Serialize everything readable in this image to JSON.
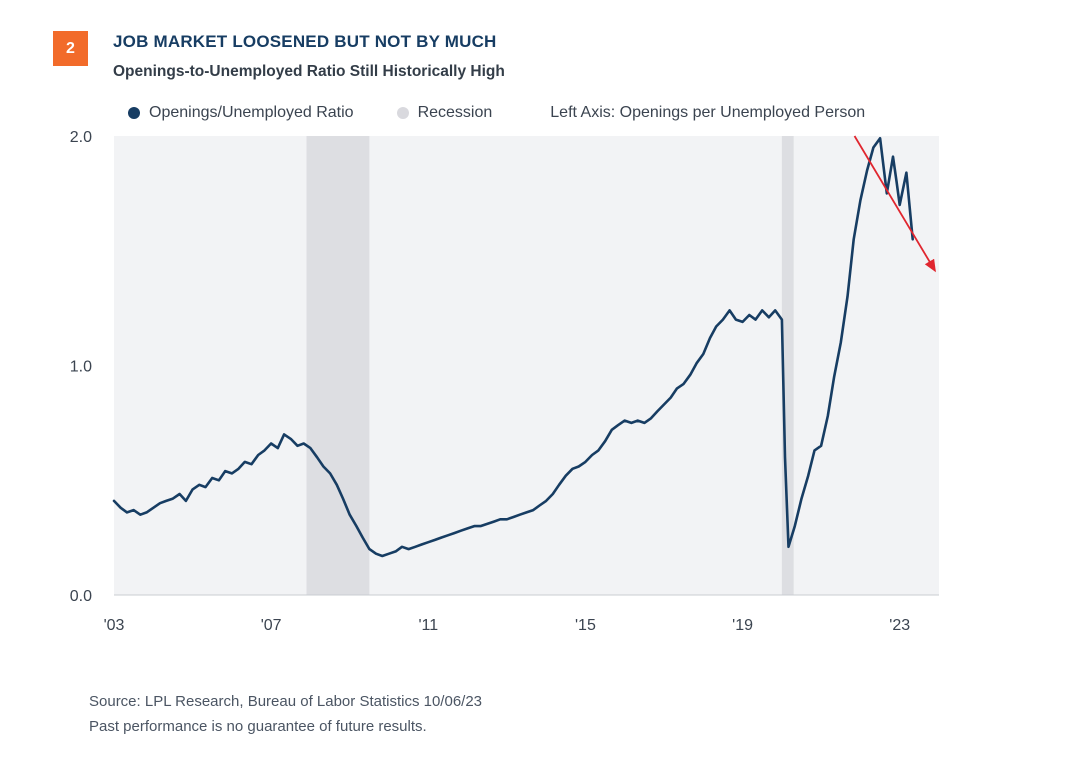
{
  "header": {
    "badge": "2",
    "title": "JOB MARKET LOOSENED BUT NOT BY MUCH",
    "subtitle": "Openings-to-Unemployed Ratio Still Historically High"
  },
  "legend": {
    "series_label": "Openings/Unemployed Ratio",
    "recession_label": "Recession",
    "axis_note": "Left Axis: Openings per Unemployed Person",
    "series_color": "#173d63",
    "recession_color": "#d9d9de"
  },
  "footer": {
    "source": "Source: LPL Research, Bureau of Labor Statistics  10/06/23",
    "disclaimer": "Past performance is no guarantee of future results."
  },
  "chart_data": {
    "type": "line",
    "title": "JOB MARKET LOOSENED BUT NOT BY MUCH",
    "subtitle": "Openings-to-Unemployed Ratio Still Historically High",
    "xlabel": "",
    "ylabel": "Left Axis: Openings per Unemployed Person",
    "xlim": [
      2003.0,
      2024.0
    ],
    "ylim": [
      0.0,
      2.0
    ],
    "yticks": [
      "0.0",
      "1.0",
      "2.0"
    ],
    "xticks": [
      {
        "x": 2003.0,
        "label": "'03"
      },
      {
        "x": 2007.0,
        "label": "'07"
      },
      {
        "x": 2011.0,
        "label": "'11"
      },
      {
        "x": 2015.0,
        "label": "'15"
      },
      {
        "x": 2019.0,
        "label": "'19"
      },
      {
        "x": 2023.0,
        "label": "'23"
      }
    ],
    "grid": false,
    "legend_position": "top",
    "plot_background": "#f2f3f5",
    "recessions": [
      {
        "start": 2007.9,
        "end": 2009.5
      },
      {
        "start": 2020.0,
        "end": 2020.3
      }
    ],
    "series": [
      {
        "name": "Openings/Unemployed Ratio",
        "color": "#173d63",
        "points": [
          [
            2003.0,
            0.41
          ],
          [
            2003.17,
            0.38
          ],
          [
            2003.33,
            0.36
          ],
          [
            2003.5,
            0.37
          ],
          [
            2003.67,
            0.35
          ],
          [
            2003.83,
            0.36
          ],
          [
            2004.0,
            0.38
          ],
          [
            2004.17,
            0.4
          ],
          [
            2004.33,
            0.41
          ],
          [
            2004.5,
            0.42
          ],
          [
            2004.67,
            0.44
          ],
          [
            2004.83,
            0.41
          ],
          [
            2005.0,
            0.46
          ],
          [
            2005.17,
            0.48
          ],
          [
            2005.33,
            0.47
          ],
          [
            2005.5,
            0.51
          ],
          [
            2005.67,
            0.5
          ],
          [
            2005.83,
            0.54
          ],
          [
            2006.0,
            0.53
          ],
          [
            2006.17,
            0.55
          ],
          [
            2006.33,
            0.58
          ],
          [
            2006.5,
            0.57
          ],
          [
            2006.67,
            0.61
          ],
          [
            2006.83,
            0.63
          ],
          [
            2007.0,
            0.66
          ],
          [
            2007.17,
            0.64
          ],
          [
            2007.33,
            0.7
          ],
          [
            2007.5,
            0.68
          ],
          [
            2007.67,
            0.65
          ],
          [
            2007.83,
            0.66
          ],
          [
            2008.0,
            0.64
          ],
          [
            2008.17,
            0.6
          ],
          [
            2008.33,
            0.56
          ],
          [
            2008.5,
            0.53
          ],
          [
            2008.67,
            0.48
          ],
          [
            2008.83,
            0.42
          ],
          [
            2009.0,
            0.35
          ],
          [
            2009.17,
            0.3
          ],
          [
            2009.33,
            0.25
          ],
          [
            2009.5,
            0.2
          ],
          [
            2009.67,
            0.18
          ],
          [
            2009.83,
            0.17
          ],
          [
            2010.0,
            0.18
          ],
          [
            2010.17,
            0.19
          ],
          [
            2010.33,
            0.21
          ],
          [
            2010.5,
            0.2
          ],
          [
            2010.67,
            0.21
          ],
          [
            2010.83,
            0.22
          ],
          [
            2011.0,
            0.23
          ],
          [
            2011.17,
            0.24
          ],
          [
            2011.33,
            0.25
          ],
          [
            2011.5,
            0.26
          ],
          [
            2011.67,
            0.27
          ],
          [
            2011.83,
            0.28
          ],
          [
            2012.0,
            0.29
          ],
          [
            2012.17,
            0.3
          ],
          [
            2012.33,
            0.3
          ],
          [
            2012.5,
            0.31
          ],
          [
            2012.67,
            0.32
          ],
          [
            2012.83,
            0.33
          ],
          [
            2013.0,
            0.33
          ],
          [
            2013.17,
            0.34
          ],
          [
            2013.33,
            0.35
          ],
          [
            2013.5,
            0.36
          ],
          [
            2013.67,
            0.37
          ],
          [
            2013.83,
            0.39
          ],
          [
            2014.0,
            0.41
          ],
          [
            2014.17,
            0.44
          ],
          [
            2014.33,
            0.48
          ],
          [
            2014.5,
            0.52
          ],
          [
            2014.67,
            0.55
          ],
          [
            2014.83,
            0.56
          ],
          [
            2015.0,
            0.58
          ],
          [
            2015.17,
            0.61
          ],
          [
            2015.33,
            0.63
          ],
          [
            2015.5,
            0.67
          ],
          [
            2015.67,
            0.72
          ],
          [
            2015.83,
            0.74
          ],
          [
            2016.0,
            0.76
          ],
          [
            2016.17,
            0.75
          ],
          [
            2016.33,
            0.76
          ],
          [
            2016.5,
            0.75
          ],
          [
            2016.67,
            0.77
          ],
          [
            2016.83,
            0.8
          ],
          [
            2017.0,
            0.83
          ],
          [
            2017.17,
            0.86
          ],
          [
            2017.33,
            0.9
          ],
          [
            2017.5,
            0.92
          ],
          [
            2017.67,
            0.96
          ],
          [
            2017.83,
            1.01
          ],
          [
            2018.0,
            1.05
          ],
          [
            2018.17,
            1.12
          ],
          [
            2018.33,
            1.17
          ],
          [
            2018.5,
            1.2
          ],
          [
            2018.67,
            1.24
          ],
          [
            2018.83,
            1.2
          ],
          [
            2019.0,
            1.19
          ],
          [
            2019.17,
            1.22
          ],
          [
            2019.33,
            1.2
          ],
          [
            2019.5,
            1.24
          ],
          [
            2019.67,
            1.21
          ],
          [
            2019.83,
            1.24
          ],
          [
            2020.0,
            1.2
          ],
          [
            2020.08,
            0.6
          ],
          [
            2020.17,
            0.21
          ],
          [
            2020.33,
            0.3
          ],
          [
            2020.5,
            0.42
          ],
          [
            2020.67,
            0.52
          ],
          [
            2020.83,
            0.63
          ],
          [
            2021.0,
            0.65
          ],
          [
            2021.17,
            0.78
          ],
          [
            2021.33,
            0.95
          ],
          [
            2021.5,
            1.1
          ],
          [
            2021.67,
            1.3
          ],
          [
            2021.83,
            1.55
          ],
          [
            2022.0,
            1.72
          ],
          [
            2022.17,
            1.85
          ],
          [
            2022.33,
            1.95
          ],
          [
            2022.5,
            1.99
          ],
          [
            2022.67,
            1.75
          ],
          [
            2022.83,
            1.91
          ],
          [
            2022.92,
            1.8
          ],
          [
            2023.0,
            1.7
          ],
          [
            2023.17,
            1.84
          ],
          [
            2023.33,
            1.55
          ]
        ]
      }
    ],
    "annotations": [
      {
        "type": "arrow",
        "color": "#e0262f",
        "from": [
          2021.85,
          2.0
        ],
        "to": [
          2024.0,
          1.4
        ]
      }
    ]
  }
}
